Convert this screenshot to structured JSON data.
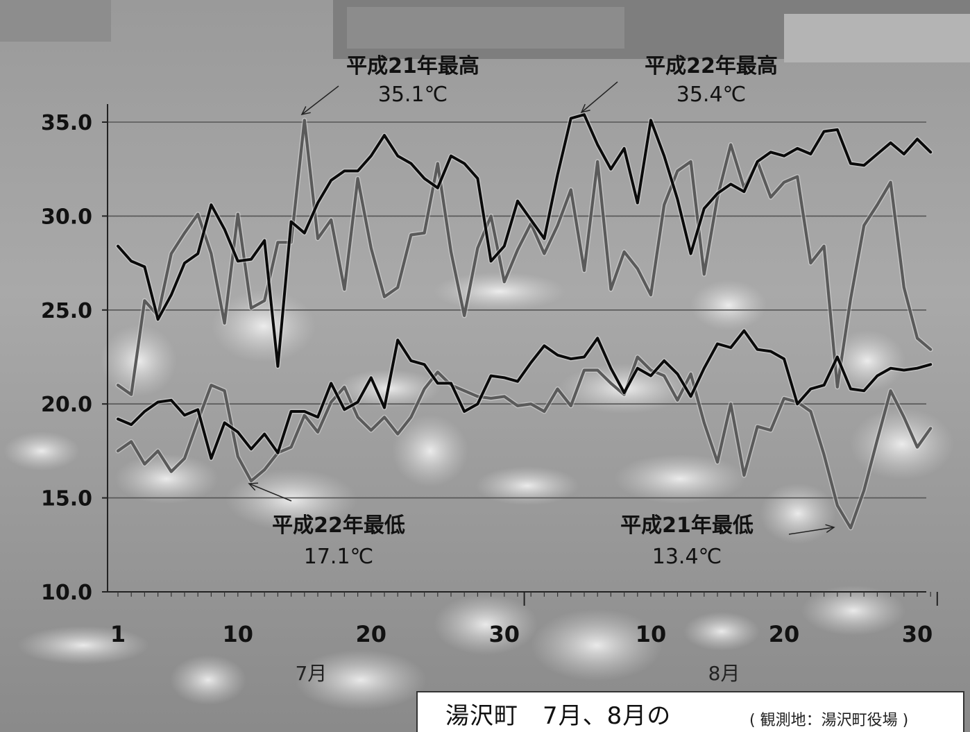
{
  "chart_data": {
    "type": "line",
    "ylim": [
      10.0,
      35.0
    ],
    "y_ticks": [
      "35.0",
      "30.0",
      "25.0",
      "20.0",
      "15.0",
      "10.0"
    ],
    "x_ticks": [
      "1",
      "10",
      "20",
      "30",
      "10",
      "20",
      "30"
    ],
    "months": [
      "7月",
      "8月"
    ],
    "grid": true,
    "colors": {
      "h22": "#0a0a0a",
      "h21": "#5a5a5a"
    },
    "series": [
      {
        "key": "h22_max",
        "values": [
          28.4,
          27.6,
          27.3,
          24.5,
          25.8,
          27.5,
          28.0,
          30.6,
          29.3,
          27.6,
          27.7,
          28.7,
          22.0,
          29.7,
          29.1,
          30.7,
          31.9,
          32.4,
          32.4,
          33.2,
          34.3,
          33.2,
          32.8,
          32.0,
          31.5,
          33.2,
          32.8,
          32.0,
          27.6,
          28.4,
          30.8,
          29.8,
          28.8,
          32.2,
          35.2,
          35.4,
          33.8,
          32.5,
          33.6,
          30.7,
          35.1,
          33.2,
          30.9,
          28.0,
          30.4,
          31.2,
          31.7,
          31.3,
          32.9,
          33.4,
          33.2,
          33.6,
          33.3,
          34.5,
          34.6,
          32.8,
          32.7,
          33.3,
          33.9,
          33.3,
          34.1,
          33.4
        ]
      },
      {
        "key": "h22_min",
        "values": [
          19.2,
          18.9,
          19.6,
          20.1,
          20.2,
          19.4,
          19.7,
          17.1,
          19.0,
          18.5,
          17.6,
          18.4,
          17.4,
          19.6,
          19.6,
          19.3,
          21.1,
          19.7,
          20.1,
          21.4,
          19.8,
          23.4,
          22.3,
          22.1,
          21.1,
          21.1,
          19.6,
          20.0,
          21.5,
          21.4,
          21.2,
          22.2,
          23.1,
          22.6,
          22.4,
          22.5,
          23.5,
          21.9,
          20.6,
          21.9,
          21.5,
          22.3,
          21.6,
          20.4,
          21.9,
          23.2,
          23.0,
          23.9,
          22.9,
          22.8,
          22.4,
          20.0,
          20.8,
          21.0,
          22.5,
          20.8,
          20.7,
          21.5,
          21.9,
          21.8,
          21.9,
          22.1
        ]
      },
      {
        "key": "h21_max",
        "values": [
          21.0,
          20.5,
          25.5,
          24.7,
          28.0,
          29.1,
          30.1,
          28.0,
          24.3,
          30.1,
          25.1,
          25.5,
          28.6,
          28.6,
          35.1,
          28.8,
          29.8,
          26.1,
          32.0,
          28.3,
          25.7,
          26.2,
          29.0,
          29.1,
          32.8,
          28.1,
          24.7,
          28.3,
          30.0,
          26.5,
          28.2,
          29.6,
          28.0,
          29.5,
          31.4,
          27.1,
          32.9,
          26.1,
          28.1,
          27.2,
          25.8,
          30.6,
          32.4,
          32.9,
          26.9,
          31.0,
          33.8,
          31.5,
          32.9,
          31.0,
          31.8,
          32.1,
          27.5,
          28.4,
          20.9,
          25.6,
          29.5,
          30.6,
          31.8,
          26.2,
          23.5,
          22.9
        ]
      },
      {
        "key": "h21_min",
        "values": [
          17.5,
          18.0,
          16.8,
          17.5,
          16.4,
          17.1,
          19.1,
          21.0,
          20.7,
          17.2,
          15.9,
          16.5,
          17.4,
          17.7,
          19.4,
          18.5,
          20.1,
          20.9,
          19.3,
          18.6,
          19.3,
          18.4,
          19.3,
          20.8,
          21.7,
          21.0,
          20.7,
          20.4,
          20.3,
          20.4,
          19.9,
          20.0,
          19.6,
          20.8,
          19.9,
          21.8,
          21.8,
          21.1,
          20.5,
          22.5,
          21.8,
          21.5,
          20.2,
          21.6,
          19.0,
          16.9,
          20.0,
          16.2,
          18.8,
          18.6,
          20.3,
          20.1,
          19.6,
          17.3,
          14.6,
          13.4,
          15.4,
          18.1,
          20.7,
          19.3,
          17.7,
          18.7
        ]
      }
    ],
    "annotations": [
      {
        "key": "h21max",
        "title": "平成21年最高",
        "value": "35.1℃"
      },
      {
        "key": "h22max",
        "title": "平成22年最高",
        "value": "35.4℃"
      },
      {
        "key": "h22min",
        "title": "平成22年最低",
        "value": "17.1℃"
      },
      {
        "key": "h21min",
        "title": "平成21年最低",
        "value": "13.4℃"
      }
    ]
  },
  "caption": {
    "main": "湯沢町　7月、8月の",
    "sub": "( 観測地：湯沢町役場 )"
  }
}
